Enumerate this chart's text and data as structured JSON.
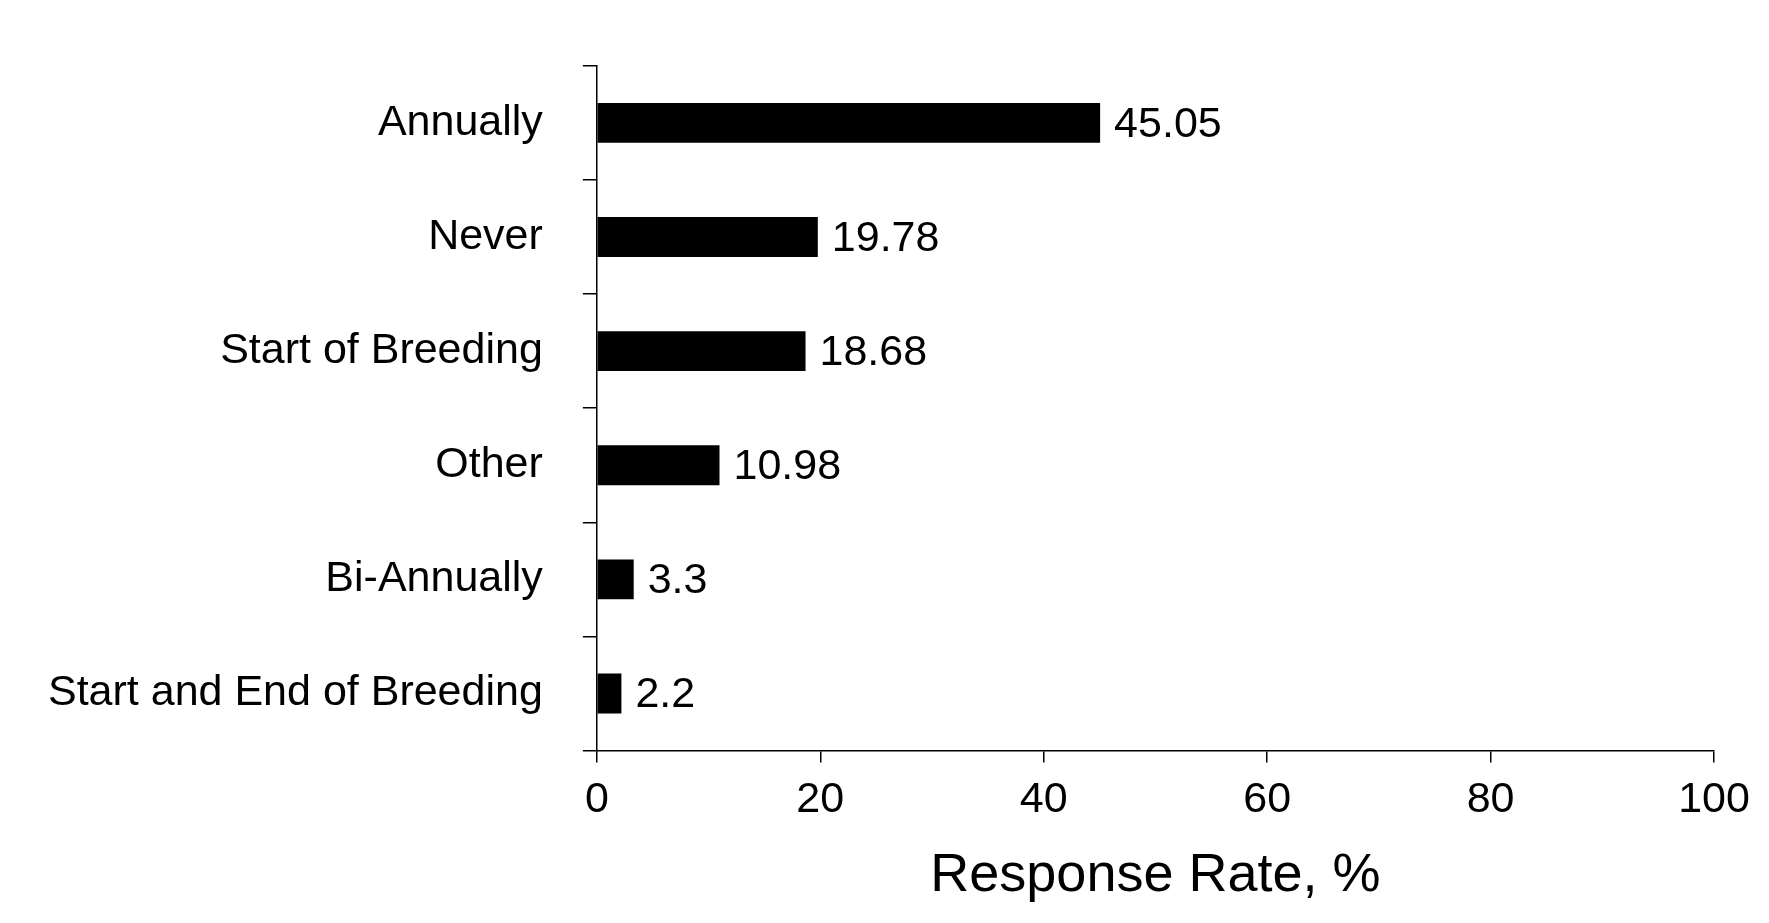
{
  "chart_data": {
    "type": "bar",
    "orientation": "horizontal",
    "xlabel": "Response Rate, %",
    "categories": [
      "Annually",
      "Never",
      "Start of Breeding",
      "Other",
      "Bi-Annually",
      "Start and End of Breeding"
    ],
    "values": [
      45.05,
      19.78,
      18.68,
      10.98,
      3.3,
      2.2
    ],
    "color": "#000000",
    "xlim": [
      0,
      100
    ],
    "xticks": [
      0,
      20,
      40,
      60,
      80,
      100
    ],
    "grid": false,
    "legend": false,
    "data_labels": true
  }
}
